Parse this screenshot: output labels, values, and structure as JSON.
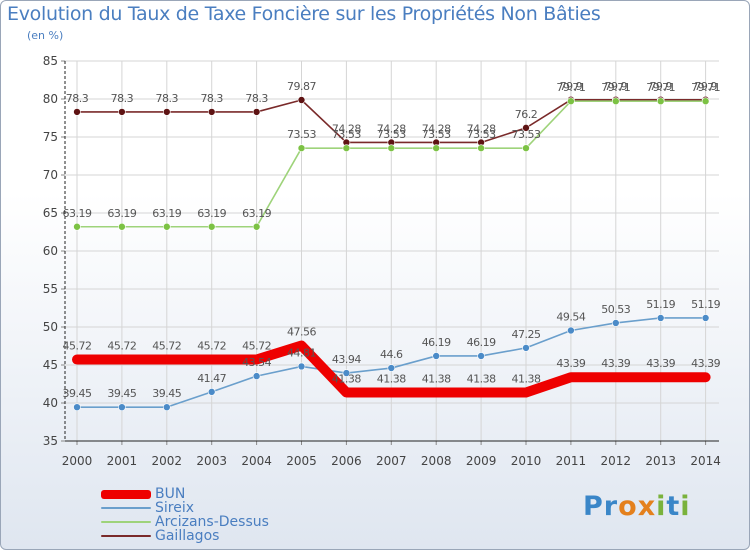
{
  "chart_data": {
    "type": "line",
    "title": "Evolution du Taux de Taxe Foncière sur les Propriétés Non Bâties",
    "subtitle": "(en %)",
    "xlabel": "",
    "ylabel": "(en %)",
    "ylim": [
      35,
      85
    ],
    "y_ticks": [
      35,
      40,
      45,
      50,
      55,
      60,
      65,
      70,
      75,
      80,
      85
    ],
    "categories": [
      "2000",
      "2001",
      "2002",
      "2003",
      "2004",
      "2005",
      "2006",
      "2007",
      "2008",
      "2009",
      "2010",
      "2011",
      "2012",
      "2013",
      "2014"
    ],
    "series": [
      {
        "name": "BUN",
        "color": "#ee0000",
        "values": [
          45.72,
          45.72,
          45.72,
          45.72,
          45.72,
          47.56,
          41.38,
          41.38,
          41.38,
          41.38,
          41.38,
          43.39,
          43.39,
          43.39,
          43.39
        ]
      },
      {
        "name": "Sireix",
        "color": "#6a9fcc",
        "marker": "#4b8bc8",
        "values": [
          39.45,
          39.45,
          39.45,
          41.47,
          43.54,
          44.81,
          43.94,
          44.6,
          46.19,
          46.19,
          47.25,
          49.54,
          50.53,
          51.19,
          51.19
        ]
      },
      {
        "name": "Arcizans-Dessus",
        "color": "#9ed37a",
        "marker": "#7cc244",
        "values": [
          63.19,
          63.19,
          63.19,
          63.19,
          63.19,
          73.53,
          73.53,
          73.53,
          73.53,
          73.53,
          73.53,
          79.71,
          79.71,
          79.71,
          79.71
        ]
      },
      {
        "name": "Gaillagos",
        "color": "#7a2a2a",
        "marker": "#5e1313",
        "values": [
          78.3,
          78.3,
          78.3,
          78.3,
          78.3,
          79.87,
          74.28,
          74.28,
          74.28,
          74.28,
          76.2,
          79.9,
          79.9,
          79.9,
          79.9
        ]
      }
    ],
    "labels": {
      "BUN": [
        "45.72",
        "45.72",
        "45.72",
        "45.72",
        "45.72",
        "47.56",
        "41.38",
        "41.38",
        "41.38",
        "41.38",
        "41.38",
        "43.39",
        "43.39",
        "43.39",
        "43.39"
      ],
      "Sireix": [
        "39.45",
        "39.45",
        "39.45",
        "41.47",
        "43.54",
        "44.81",
        "43.94",
        "44.6",
        "46.19",
        "46.19",
        "47.25",
        "49.54",
        "50.53",
        "51.19",
        "51.19"
      ],
      "Arcizans-Dessus": [
        "63.19",
        "63.19",
        "63.19",
        "63.19",
        "63.19",
        "73.53",
        "73.53",
        "73.53",
        "73.53",
        "73.53",
        "73.53",
        "79.71",
        "79.71",
        "79.71",
        "79.71"
      ],
      "Gaillagos": [
        "78.3",
        "78.3",
        "78.3",
        "78.3",
        "78.3",
        "79.87",
        "74.28",
        "74.28",
        "74.28",
        "74.28",
        "76.2",
        "79.9",
        "79.9",
        "79.9",
        "79.9"
      ]
    },
    "legend_position": "bottom-left"
  },
  "logo": {
    "letters": [
      "P",
      "r",
      "o",
      "x",
      "i",
      "t",
      "i"
    ]
  }
}
